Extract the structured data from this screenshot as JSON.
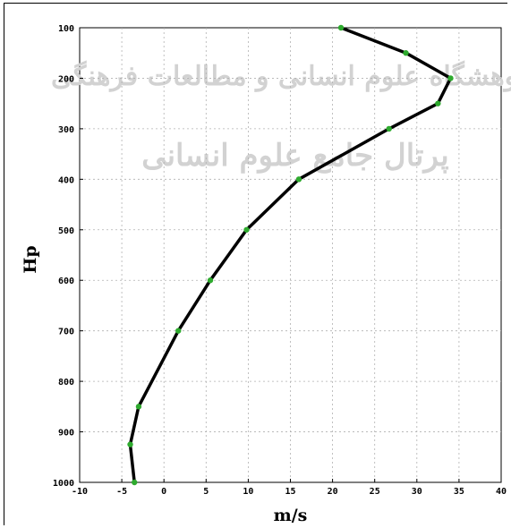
{
  "chart_data": {
    "type": "line",
    "xlabel": "m/s",
    "ylabel": "Hp",
    "xlim": [
      -10,
      40
    ],
    "ylim": [
      1000,
      100
    ],
    "x_ticks": [
      -10,
      -5,
      0,
      5,
      10,
      15,
      20,
      25,
      30,
      35,
      40
    ],
    "y_ticks": [
      100,
      200,
      300,
      400,
      500,
      600,
      700,
      800,
      900,
      1000
    ],
    "grid": true,
    "series": [
      {
        "x": [
          21,
          28.7,
          34,
          32.5,
          26.7,
          16,
          9.8,
          5.5,
          1.7,
          -3,
          -4,
          -3.5
        ],
        "y": [
          100,
          150,
          200,
          250,
          300,
          400,
          500,
          600,
          700,
          850,
          925,
          1000
        ],
        "line_color": "#000000",
        "marker_color": "#2eaa2e"
      }
    ],
    "watermark_lines": [
      "پژوهشگاه علوم انسانی و مطالعات فرهنگی",
      "پرتال جامع علوم انسانی"
    ]
  }
}
